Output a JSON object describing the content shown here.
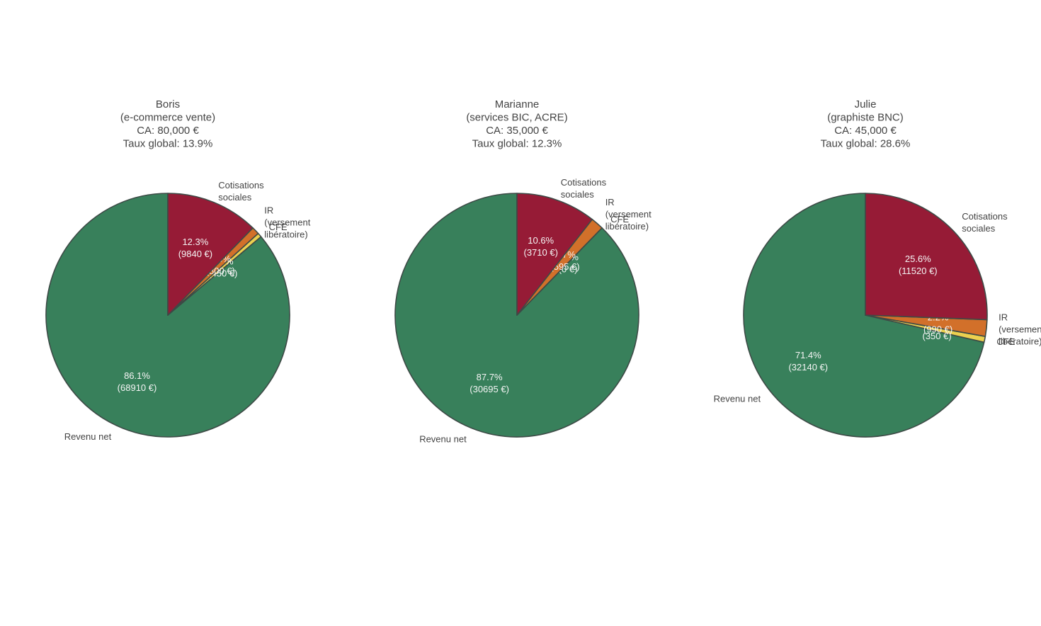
{
  "colors": {
    "Revenu net": "#38805b",
    "Cotisations sociales": "#961b36",
    "IR (versement libératoire)": "#d2702a",
    "CFE": "#ecd04f",
    "edge": "#3d4a46"
  },
  "chart_data": [
    {
      "type": "pie",
      "title": [
        "Boris",
        "(e-commerce vente)",
        "CA: 80,000 €",
        "Taux global: 13.9%"
      ],
      "slices": [
        {
          "name": "Revenu net",
          "label_lines": [
            "Revenu net"
          ],
          "value": 68910,
          "pct_label": "86.1%",
          "amount_label": "(68910 €)"
        },
        {
          "name": "CFE",
          "label_lines": [
            "CFE"
          ],
          "value": 450,
          "pct_label": "0.6%",
          "amount_label": "(450 €)"
        },
        {
          "name": "IR (versement libératoire)",
          "label_lines": [
            "IR",
            "(versement",
            "libératoire)"
          ],
          "value": 800,
          "pct_label": "1.0%",
          "amount_label": "(800 €)"
        },
        {
          "name": "Cotisations sociales",
          "label_lines": [
            "Cotisations",
            "sociales"
          ],
          "value": 9840,
          "pct_label": "12.3%",
          "amount_label": "(9840 €)"
        }
      ]
    },
    {
      "type": "pie",
      "title": [
        "Marianne",
        "(services BIC, ACRE)",
        "CA: 35,000 €",
        "Taux global: 12.3%"
      ],
      "slices": [
        {
          "name": "Revenu net",
          "label_lines": [
            "Revenu net"
          ],
          "value": 30695,
          "pct_label": "87.7%",
          "amount_label": "(30695 €)"
        },
        {
          "name": "CFE",
          "label_lines": [
            "CFE"
          ],
          "value": 0,
          "pct_label": "0.0%",
          "amount_label": "(0 €)"
        },
        {
          "name": "IR (versement libératoire)",
          "label_lines": [
            "IR",
            "(versement",
            "libératoire)"
          ],
          "value": 595,
          "pct_label": "1.7%",
          "amount_label": "(595 €)"
        },
        {
          "name": "Cotisations sociales",
          "label_lines": [
            "Cotisations",
            "sociales"
          ],
          "value": 3710,
          "pct_label": "10.6%",
          "amount_label": "(3710 €)"
        }
      ]
    },
    {
      "type": "pie",
      "title": [
        "Julie",
        "(graphiste BNC)",
        "CA: 45,000 €",
        "Taux global: 28.6%"
      ],
      "slices": [
        {
          "name": "Revenu net",
          "label_lines": [
            "Revenu net"
          ],
          "value": 32140,
          "pct_label": "71.4%",
          "amount_label": "(32140 €)"
        },
        {
          "name": "CFE",
          "label_lines": [
            "CFE"
          ],
          "value": 350,
          "pct_label": "0.8%",
          "amount_label": "(350 €)"
        },
        {
          "name": "IR (versement libératoire)",
          "label_lines": [
            "IR",
            "(versement",
            "libératoire)"
          ],
          "value": 990,
          "pct_label": "2.2%",
          "amount_label": "(990 €)"
        },
        {
          "name": "Cotisations sociales",
          "label_lines": [
            "Cotisations",
            "sociales"
          ],
          "value": 11520,
          "pct_label": "25.6%",
          "amount_label": "(11520 €)"
        }
      ]
    }
  ]
}
